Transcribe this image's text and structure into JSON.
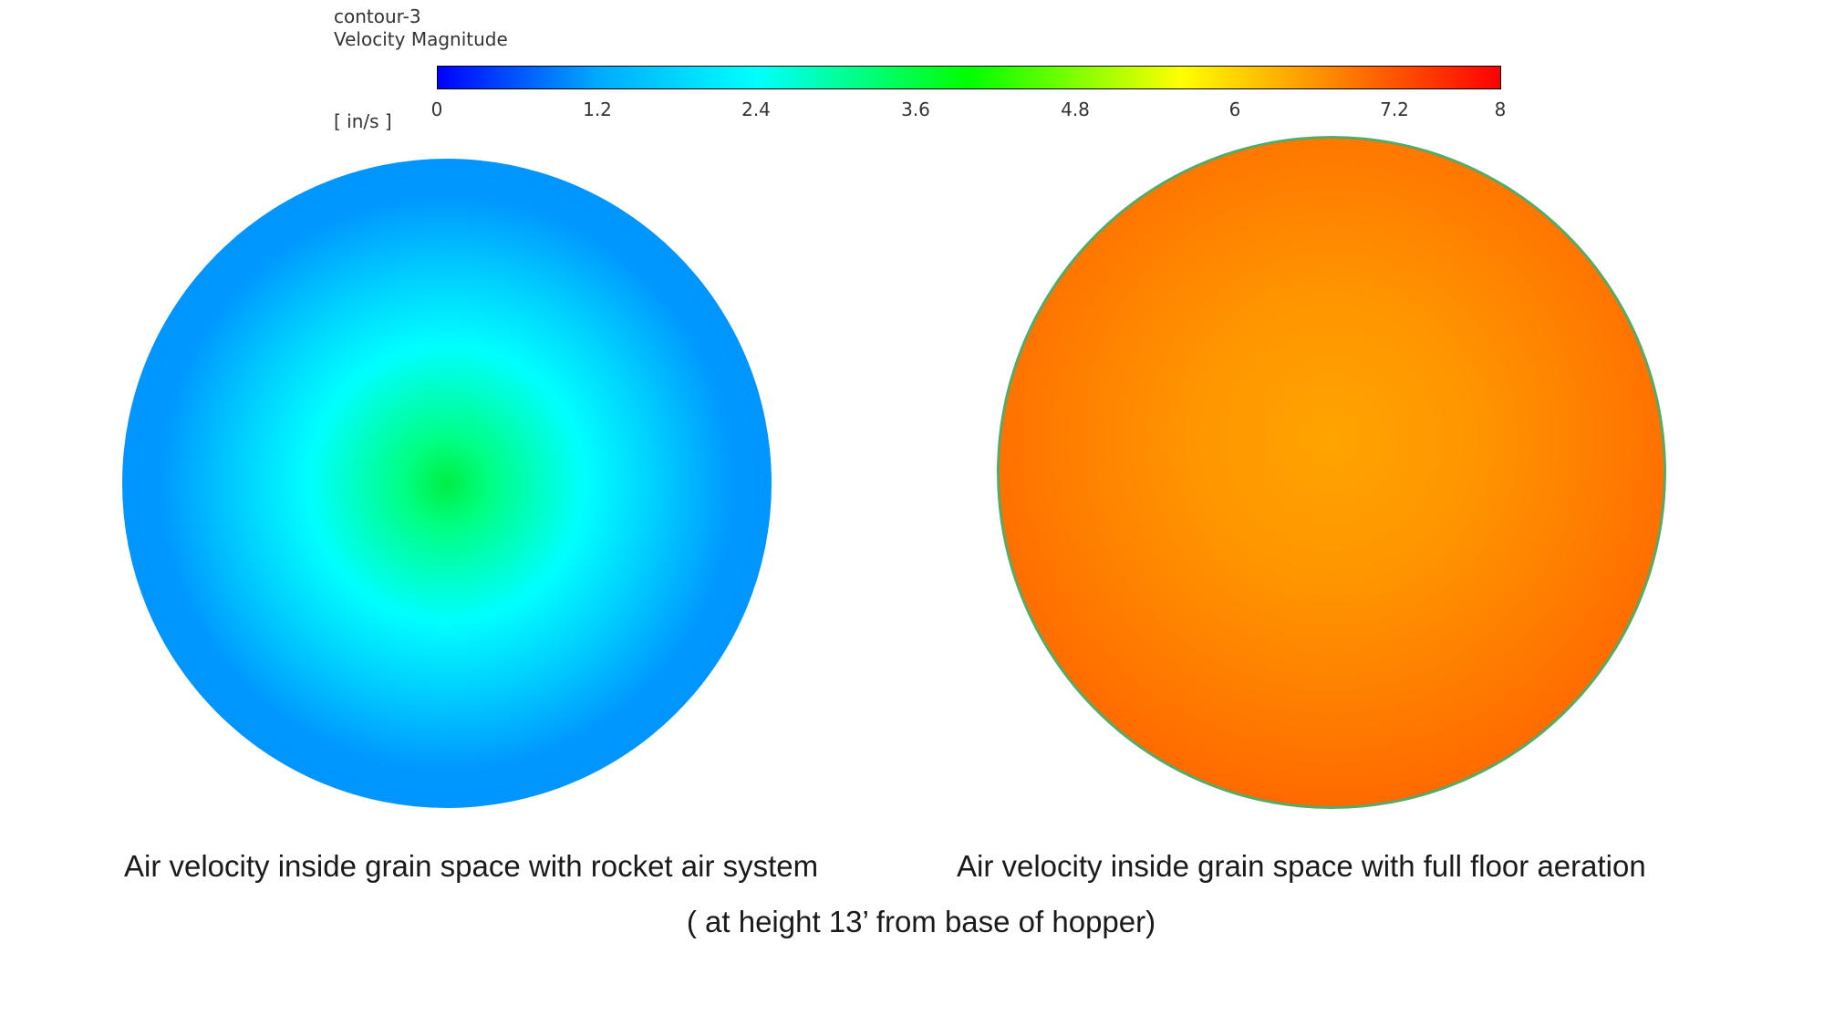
{
  "legend": {
    "contour_name": "contour-3",
    "quantity": "Velocity Magnitude",
    "unit": "[ in/s ]",
    "min": 0,
    "max": 8,
    "ticks": [
      "0",
      "1.2",
      "2.4",
      "3.6",
      "4.8",
      "6",
      "7.2",
      "8"
    ],
    "colormap": [
      "#0000ff",
      "#00aaff",
      "#00ffff",
      "#00ff00",
      "#ffff00",
      "#ffaa00",
      "#ff0000"
    ]
  },
  "plots": [
    {
      "caption": "Air velocity inside grain space with rocket air system",
      "center_color": "#00ee44",
      "edge_color": "#0000ee"
    },
    {
      "caption": "Air velocity inside grain space with full floor aeration",
      "center_color": "#ffa400",
      "edge_color": "#ff4400"
    }
  ],
  "footnote": "( at height 13’ from base of hopper)"
}
